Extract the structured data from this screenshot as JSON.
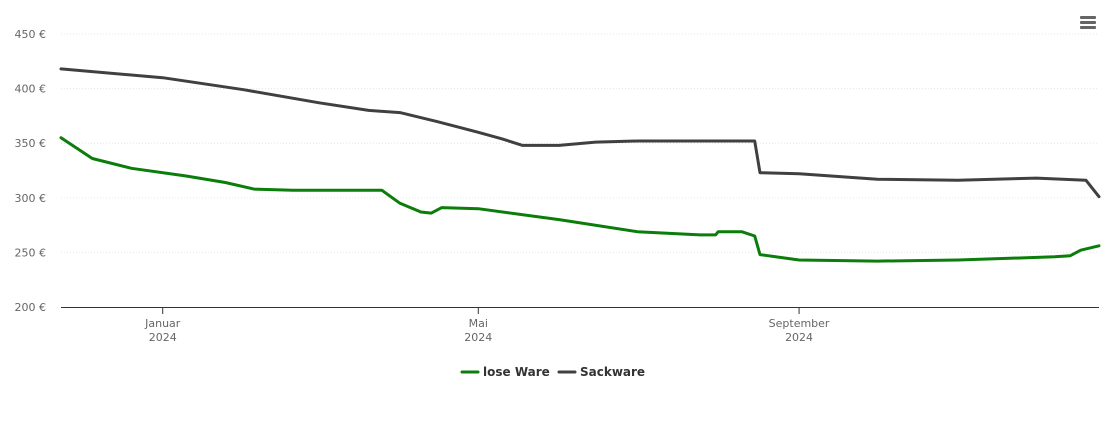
{
  "menu": {
    "icon": "hamburger-menu-icon"
  },
  "chart_data": {
    "type": "line",
    "title": "",
    "xlabel": "",
    "ylabel": "",
    "ylim": [
      200,
      450
    ],
    "xlim": [
      "2023-11-23",
      "2024-12-25"
    ],
    "grid": true,
    "legend_position": "bottom-center",
    "y_ticks": [
      "200 €",
      "250 €",
      "300 €",
      "350 €",
      "400 €",
      "450 €"
    ],
    "y_tick_values": [
      200,
      250,
      300,
      350,
      400,
      450
    ],
    "x_ticks": [
      {
        "date": "2024-01-01",
        "month": "Januar",
        "year": "2024"
      },
      {
        "date": "2024-05-01",
        "month": "Mai",
        "year": "2024"
      },
      {
        "date": "2024-09-01",
        "month": "September",
        "year": "2024"
      }
    ],
    "series": [
      {
        "name": "lose Ware",
        "color": "#0a7d0a",
        "points": [
          [
            "2023-11-23",
            355
          ],
          [
            "2023-12-05",
            336
          ],
          [
            "2023-12-20",
            327
          ],
          [
            "2024-01-10",
            320
          ],
          [
            "2024-01-25",
            314
          ],
          [
            "2024-02-05",
            308
          ],
          [
            "2024-02-20",
            307
          ],
          [
            "2024-03-15",
            307
          ],
          [
            "2024-03-25",
            307
          ],
          [
            "2024-04-01",
            295
          ],
          [
            "2024-04-09",
            287
          ],
          [
            "2024-04-13",
            286
          ],
          [
            "2024-04-17",
            291
          ],
          [
            "2024-05-01",
            290
          ],
          [
            "2024-06-01",
            280
          ],
          [
            "2024-07-01",
            269
          ],
          [
            "2024-07-25",
            266
          ],
          [
            "2024-07-31",
            266
          ],
          [
            "2024-08-01",
            269
          ],
          [
            "2024-08-10",
            269
          ],
          [
            "2024-08-15",
            265
          ],
          [
            "2024-08-17",
            248
          ],
          [
            "2024-09-01",
            243
          ],
          [
            "2024-10-01",
            242
          ],
          [
            "2024-11-01",
            243
          ],
          [
            "2024-12-08",
            246
          ],
          [
            "2024-12-14",
            247
          ],
          [
            "2024-12-18",
            252
          ],
          [
            "2024-12-25",
            256
          ]
        ]
      },
      {
        "name": "Sackware",
        "color": "#404040",
        "points": [
          [
            "2023-11-23",
            418
          ],
          [
            "2024-01-01",
            410
          ],
          [
            "2024-02-01",
            399
          ],
          [
            "2024-03-01",
            387
          ],
          [
            "2024-03-20",
            380
          ],
          [
            "2024-04-01",
            378
          ],
          [
            "2024-04-15",
            370
          ],
          [
            "2024-05-01",
            360
          ],
          [
            "2024-05-10",
            354
          ],
          [
            "2024-05-18",
            348
          ],
          [
            "2024-06-01",
            348
          ],
          [
            "2024-06-15",
            351
          ],
          [
            "2024-07-01",
            352
          ],
          [
            "2024-08-13",
            352
          ],
          [
            "2024-08-15",
            352
          ],
          [
            "2024-08-17",
            323
          ],
          [
            "2024-09-01",
            322
          ],
          [
            "2024-10-01",
            317
          ],
          [
            "2024-11-01",
            316
          ],
          [
            "2024-12-01",
            318
          ],
          [
            "2024-12-20",
            316
          ],
          [
            "2024-12-25",
            301
          ]
        ]
      }
    ]
  }
}
